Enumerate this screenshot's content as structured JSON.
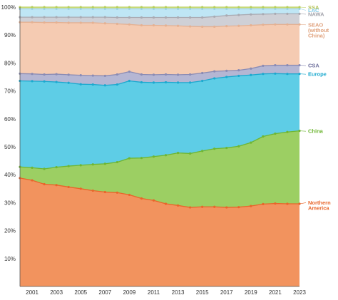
{
  "chart_data": {
    "type": "area",
    "stacked": true,
    "xlim": [
      2000,
      2023
    ],
    "ylim": [
      0,
      100
    ],
    "y_ticks": [
      10,
      20,
      30,
      40,
      50,
      60,
      70,
      80,
      90,
      100
    ],
    "y_tick_labels": [
      "10%",
      "20%",
      "30%",
      "40%",
      "50%",
      "60%",
      "70%",
      "80%",
      "90%",
      "100%"
    ],
    "x_ticks": [
      2001,
      2003,
      2005,
      2007,
      2009,
      2011,
      2013,
      2015,
      2017,
      2019,
      2021,
      2023
    ],
    "x_tick_labels": [
      "2001",
      "2003",
      "2005",
      "2007",
      "2009",
      "2011",
      "2013",
      "2015",
      "2017",
      "2019",
      "2021",
      "2023"
    ],
    "grid": false,
    "legend": "direct labels at right end",
    "x": [
      2000,
      2001,
      2002,
      2003,
      2004,
      2005,
      2006,
      2007,
      2008,
      2009,
      2010,
      2011,
      2012,
      2013,
      2014,
      2015,
      2016,
      2017,
      2018,
      2019,
      2020,
      2021,
      2022,
      2023
    ],
    "series": [
      {
        "name": "Northern America",
        "label_lines": [
          "Northern",
          "America"
        ],
        "color": "#f2935e",
        "line_color": "#e8652a",
        "label_color": "#e8652a",
        "cumulative": [
          38.8,
          38.0,
          36.6,
          36.3,
          35.6,
          35.0,
          34.3,
          33.8,
          33.6,
          32.8,
          31.5,
          30.8,
          29.6,
          29.0,
          28.3,
          28.5,
          28.5,
          28.3,
          28.4,
          28.8,
          29.5,
          29.7,
          29.6,
          29.6
        ]
      },
      {
        "name": "China",
        "label_lines": [
          "China"
        ],
        "color": "#9ccf63",
        "line_color": "#6eb633",
        "label_color": "#6eb633",
        "cumulative": [
          42.8,
          42.5,
          42.1,
          42.7,
          43.1,
          43.4,
          43.7,
          43.9,
          44.5,
          45.9,
          46.0,
          46.5,
          47.0,
          47.8,
          47.6,
          48.5,
          49.3,
          49.6,
          50.2,
          51.5,
          53.7,
          54.7,
          55.3,
          55.7
        ]
      },
      {
        "name": "Europe",
        "label_lines": [
          "Europe"
        ],
        "color": "#5ecde6",
        "line_color": "#1ba9cf",
        "label_color": "#1ba9cf",
        "cumulative": [
          73.6,
          73.5,
          73.4,
          73.2,
          72.9,
          72.4,
          72.3,
          72.0,
          72.3,
          73.6,
          73.1,
          73.0,
          73.1,
          73.0,
          73.0,
          73.6,
          74.5,
          75.0,
          75.4,
          75.7,
          76.1,
          76.2,
          76.1,
          76.1
        ]
      },
      {
        "name": "CSA",
        "label_lines": [
          "CSA"
        ],
        "color": "#b5b6d3",
        "line_color": "#8a8bb4",
        "label_color": "#6e6f9c",
        "cumulative": [
          76.2,
          76.1,
          75.9,
          76.0,
          75.8,
          75.6,
          75.5,
          75.4,
          75.9,
          76.9,
          75.9,
          75.8,
          75.9,
          75.8,
          75.9,
          76.4,
          77.0,
          77.2,
          77.4,
          78.0,
          79.0,
          79.2,
          79.2,
          79.2
        ]
      },
      {
        "name": "SEAO (without China)",
        "label_lines": [
          "SEAO",
          "(without",
          "China)"
        ],
        "color": "#f5cbb2",
        "line_color": "#e4b193",
        "label_color": "#e0a27d",
        "cumulative": [
          94.6,
          94.6,
          94.5,
          94.5,
          94.4,
          94.4,
          94.4,
          94.2,
          94.0,
          93.8,
          93.5,
          93.5,
          93.4,
          93.3,
          93.1,
          93.0,
          93.0,
          93.2,
          93.3,
          93.5,
          93.7,
          93.8,
          93.8,
          93.8
        ]
      },
      {
        "name": "NAWA",
        "label_lines": [
          "NAWA"
        ],
        "color": "#cfd0d6",
        "line_color": "#a9aab2",
        "label_color": "#a1a2aa",
        "cumulative": [
          96.4,
          96.4,
          96.4,
          96.4,
          96.4,
          96.4,
          96.4,
          96.4,
          96.3,
          96.3,
          96.3,
          96.3,
          96.3,
          96.3,
          96.3,
          96.3,
          96.6,
          97.0,
          97.2,
          97.4,
          97.5,
          97.6,
          97.6,
          97.6
        ]
      },
      {
        "name": "LAC",
        "label_lines": [
          "LAC"
        ],
        "color": "#bfe6f5",
        "line_color": "#9bd2e8",
        "label_color": "#7ec8e6",
        "cumulative": [
          99.4,
          99.4,
          99.4,
          99.4,
          99.4,
          99.4,
          99.4,
          99.4,
          99.4,
          99.4,
          99.4,
          99.4,
          99.4,
          99.4,
          99.4,
          99.4,
          99.4,
          99.4,
          99.4,
          99.4,
          99.4,
          99.4,
          99.4,
          99.4
        ]
      },
      {
        "name": "SSA",
        "label_lines": [
          "SSA"
        ],
        "color": "#e4eba0",
        "line_color": "#b7cf5c",
        "label_color": "#b6c455",
        "cumulative": [
          100,
          100,
          100,
          100,
          100,
          100,
          100,
          100,
          100,
          100,
          100,
          100,
          100,
          100,
          100,
          100,
          100,
          100,
          100,
          100,
          100,
          100,
          100,
          100
        ]
      }
    ]
  }
}
